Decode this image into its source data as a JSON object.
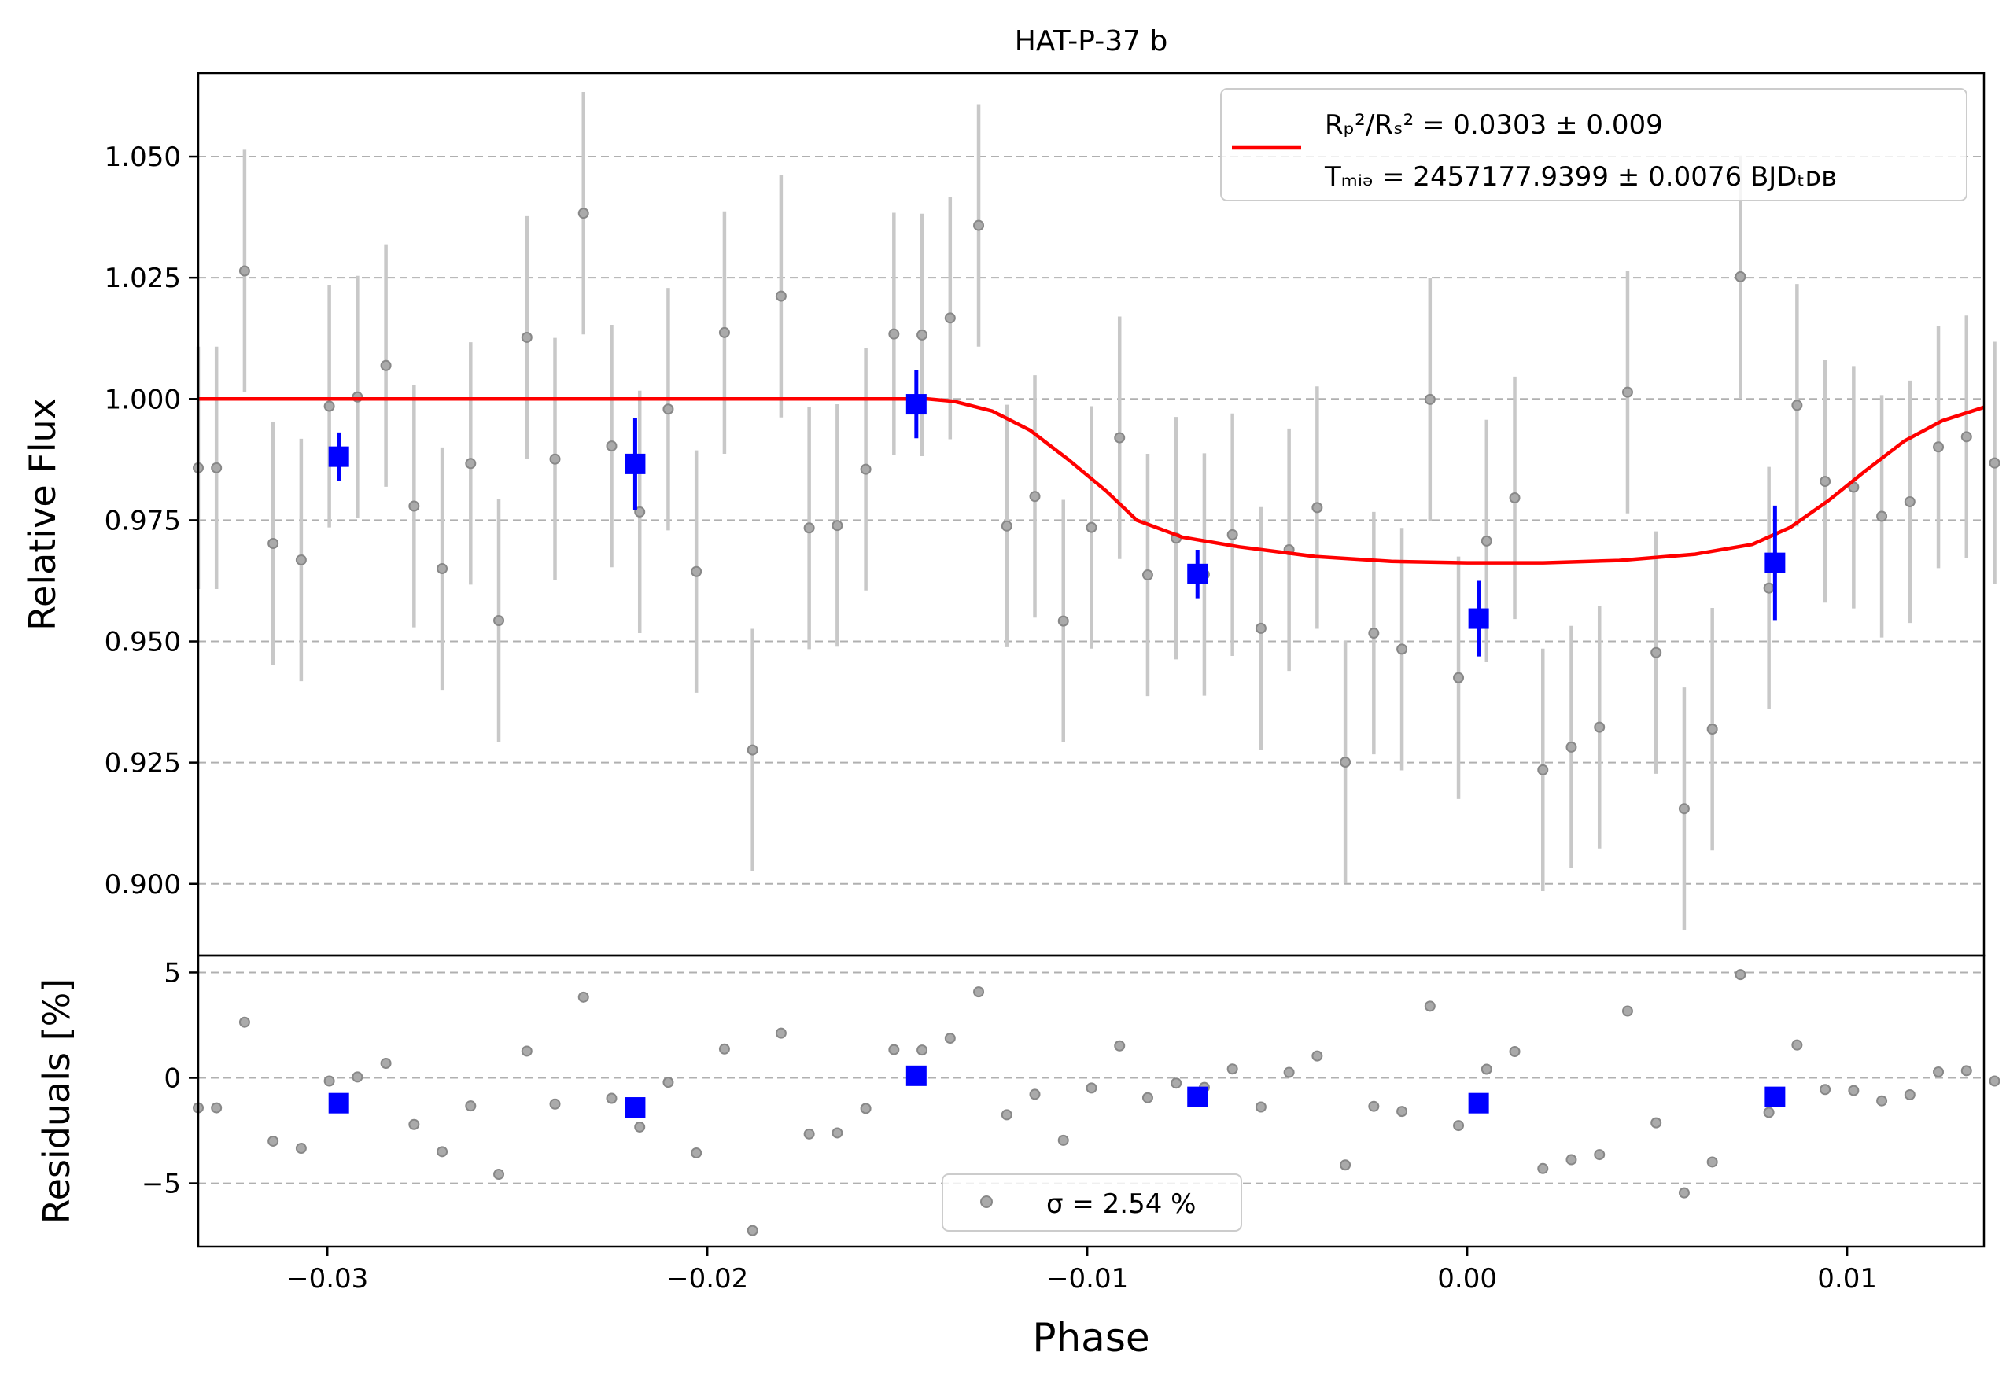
{
  "chart_data": [
    {
      "type": "scatter",
      "title": "HAT-P-37 b",
      "xlabel": "Phase",
      "ylabel": "Relative Flux",
      "xlim": [
        -0.0334,
        0.0136
      ],
      "ylim": [
        0.8852,
        1.0672
      ],
      "xticks": [
        -0.03,
        -0.02,
        -0.01,
        0.0,
        0.01
      ],
      "xtick_labels": [
        "−0.03",
        "−0.02",
        "−0.01",
        "0.00",
        "0.01"
      ],
      "yticks": [
        0.9,
        0.925,
        0.95,
        0.975,
        1.0,
        1.025,
        1.05
      ],
      "ytick_labels": [
        "0.900",
        "0.925",
        "0.950",
        "0.975",
        "1.000",
        "1.025",
        "1.050"
      ],
      "grid": "horizontal dashed",
      "legend": {
        "position": "top-right",
        "line1": "Rₚ²/Rₛ² = 0.0303 ± 0.009",
        "line2": "Tₘᵢₔ = 2457177.9399 ± 0.0076 BJDₜᴅʙ"
      },
      "colors": {
        "model": "#ff0000",
        "binned": "#0000ff",
        "raw": "#808080",
        "errorbar": "#c8c8c8",
        "grid": "#b0b0b0"
      },
      "series": [
        {
          "name": "Rₚ²/Rₛ² = 0.0303 ± 0.009",
          "kind": "model",
          "x": [
            -0.0334,
            -0.0142,
            -0.0135,
            -0.0125,
            -0.0115,
            -0.0105,
            -0.0095,
            -0.0087,
            -0.0075,
            -0.006,
            -0.004,
            -0.002,
            0.0,
            0.002,
            0.004,
            0.006,
            0.0075,
            0.0085,
            0.0095,
            0.0105,
            0.0115,
            0.0125,
            0.0136
          ],
          "y": [
            1.0,
            1.0,
            0.9995,
            0.9975,
            0.9935,
            0.9875,
            0.981,
            0.975,
            0.9715,
            0.9695,
            0.9675,
            0.9665,
            0.9662,
            0.9662,
            0.9667,
            0.968,
            0.97,
            0.9735,
            0.979,
            0.9853,
            0.9913,
            0.9955,
            0.9983
          ]
        },
        {
          "name": "raw",
          "kind": "raw",
          "x": [
            -0.0334,
            -0.03292,
            -0.03218,
            -0.03143,
            -0.03069,
            -0.02995,
            -0.02921,
            -0.02846,
            -0.02772,
            -0.02698,
            -0.02623,
            -0.02549,
            -0.02475,
            -0.02401,
            -0.02326,
            -0.02252,
            -0.02178,
            -0.02103,
            -0.02029,
            -0.01955,
            -0.01881,
            -0.01806,
            -0.01732,
            -0.01658,
            -0.01583,
            -0.01509,
            -0.01435,
            -0.01361,
            -0.01286,
            -0.01212,
            -0.01138,
            -0.01063,
            -0.00989,
            -0.00915,
            -0.00841,
            -0.00766,
            -0.00692,
            -0.00618,
            -0.00543,
            -0.00469,
            -0.00395,
            -0.00321,
            -0.00246,
            -0.00172,
            -0.00098,
            -0.00023,
            0.00051,
            0.00125,
            0.00199,
            0.00274,
            0.00348,
            0.00422,
            0.00497,
            0.00571,
            0.00645,
            0.00719,
            0.00794,
            0.00868,
            0.00942,
            0.01017,
            0.01091,
            0.01165,
            0.0124,
            0.01314,
            0.01388
          ],
          "y": [
            0.9858,
            0.9858,
            1.0264,
            0.9702,
            0.9668,
            0.9985,
            1.0004,
            1.0069,
            0.9779,
            0.965,
            0.9867,
            0.9543,
            1.0127,
            0.9876,
            1.0383,
            0.9903,
            0.9767,
            0.9979,
            0.9644,
            1.0137,
            0.9276,
            1.0212,
            0.9734,
            0.9739,
            0.9855,
            1.0134,
            1.0132,
            1.0167,
            1.0358,
            0.9738,
            0.9799,
            0.9542,
            0.9735,
            0.992,
            0.9637,
            0.9713,
            0.9638,
            0.972,
            0.9527,
            0.9689,
            0.9776,
            0.9251,
            0.9517,
            0.9484,
            0.9999,
            0.9425,
            0.9707,
            0.9796,
            0.9235,
            0.9282,
            0.9323,
            1.0014,
            0.9477,
            0.9155,
            0.9319,
            1.0252,
            0.961,
            0.9987,
            0.983,
            0.9818,
            0.9758,
            0.9788,
            0.9901,
            0.9922,
            0.9868
          ]
        },
        {
          "name": "binned",
          "kind": "binned",
          "x": [
            -0.0297,
            -0.0219,
            -0.0145,
            -0.0071,
            0.0003,
            0.0081
          ],
          "y": [
            0.9881,
            0.9866,
            0.9989,
            0.9639,
            0.9547,
            0.9662
          ],
          "err": [
            0.005,
            0.0095,
            0.007,
            0.005,
            0.0078,
            0.0118
          ]
        }
      ]
    },
    {
      "type": "scatter",
      "xlabel": "Phase",
      "ylabel": "Residuals [%]",
      "xlim": [
        -0.0334,
        0.0136
      ],
      "ylim": [
        -8.0,
        5.8
      ],
      "yticks": [
        -5,
        0,
        5
      ],
      "ytick_labels": [
        "−5",
        "0",
        "5"
      ],
      "grid": "horizontal dashed",
      "legend": {
        "position": "bottom-center",
        "text": "σ = 2.54 %"
      },
      "series": [
        {
          "name": "σ = 2.54 %",
          "kind": "raw",
          "y": [
            -1.42,
            -1.42,
            2.64,
            -3.0,
            -3.34,
            -0.15,
            0.04,
            0.69,
            -2.21,
            -3.5,
            -1.33,
            -4.57,
            1.27,
            -1.24,
            3.83,
            -0.97,
            -2.33,
            -0.21,
            -3.56,
            1.37,
            -7.24,
            2.12,
            -2.66,
            -2.61,
            -1.45,
            1.34,
            1.32,
            1.88,
            4.08,
            -1.75,
            -0.78,
            -2.96,
            -0.48,
            1.52,
            -0.94,
            -0.25,
            -0.45,
            0.42,
            -1.38,
            0.26,
            1.04,
            -4.13,
            -1.35,
            -1.59,
            3.4,
            -2.26,
            0.41,
            1.25,
            -4.3,
            -3.88,
            -3.64,
            3.17,
            -2.13,
            -5.45,
            -3.99,
            4.9,
            -1.64,
            1.56,
            -0.55,
            -0.6,
            -1.09,
            -0.8,
            0.28,
            0.34,
            -0.15
          ]
        },
        {
          "name": "binned",
          "kind": "binned",
          "x": [
            -0.0297,
            -0.0219,
            -0.0145,
            -0.0071,
            0.0003,
            0.0081
          ],
          "y": [
            -1.2,
            -1.4,
            0.1,
            -0.9,
            -1.2,
            -0.9
          ]
        }
      ]
    }
  ]
}
